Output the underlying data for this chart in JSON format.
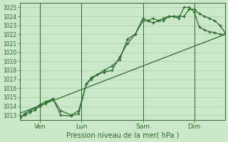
{
  "bg_color": "#cbe8cb",
  "grid_color": "#aaccaa",
  "line_color": "#2d6a2d",
  "title": "Pression niveau de la mer( hPa )",
  "ylabel_values": [
    1013,
    1014,
    1015,
    1016,
    1017,
    1018,
    1019,
    1020,
    1021,
    1022,
    1023,
    1024,
    1025
  ],
  "ylim": [
    1012.5,
    1025.5
  ],
  "xlim": [
    0,
    80
  ],
  "xtick_positions": [
    8,
    24,
    48,
    68
  ],
  "xtick_labels": [
    "Ven",
    "Lun",
    "Sam",
    "Dim"
  ],
  "line1_x": [
    0,
    2,
    4,
    6,
    8,
    10,
    13,
    16,
    20,
    23,
    26,
    28,
    30,
    33,
    36,
    39,
    42,
    45,
    48,
    50,
    52,
    54,
    56,
    58,
    60,
    62,
    64,
    66,
    68,
    70,
    72,
    74,
    76,
    78,
    80
  ],
  "line1_y": [
    1012.7,
    1013.2,
    1013.5,
    1013.8,
    1014.2,
    1014.5,
    1014.8,
    1013.0,
    1012.9,
    1013.2,
    1016.5,
    1017.0,
    1017.5,
    1018.0,
    1018.5,
    1019.2,
    1021.5,
    1022.0,
    1023.5,
    1023.5,
    1023.8,
    1023.5,
    1023.5,
    1024.0,
    1024.0,
    1024.0,
    1024.0,
    1024.8,
    1024.8,
    1024.3,
    1024.0,
    1023.8,
    1023.5,
    1023.0,
    1022.2
  ],
  "line2_x": [
    0,
    2,
    4,
    6,
    8,
    10,
    13,
    16,
    20,
    23,
    26,
    28,
    30,
    33,
    36,
    39,
    42,
    45,
    48,
    50,
    52,
    54,
    56,
    58,
    60,
    62,
    64,
    66,
    68,
    70,
    72,
    74,
    76,
    78,
    80
  ],
  "line2_y": [
    1012.7,
    1013.0,
    1013.3,
    1013.6,
    1014.0,
    1014.3,
    1014.8,
    1013.5,
    1013.0,
    1013.5,
    1016.5,
    1017.2,
    1017.5,
    1017.8,
    1018.0,
    1019.5,
    1021.0,
    1022.0,
    1023.8,
    1023.5,
    1023.3,
    1023.5,
    1023.8,
    1024.0,
    1024.0,
    1023.8,
    1025.0,
    1025.0,
    1024.5,
    1022.8,
    1022.5,
    1022.3,
    1022.2,
    1022.0,
    1022.0
  ],
  "trend_x": [
    0,
    80
  ],
  "trend_y": [
    1013.2,
    1022.0
  ],
  "title_fontsize": 7,
  "ytick_fontsize": 5.5,
  "xtick_fontsize": 6.5
}
